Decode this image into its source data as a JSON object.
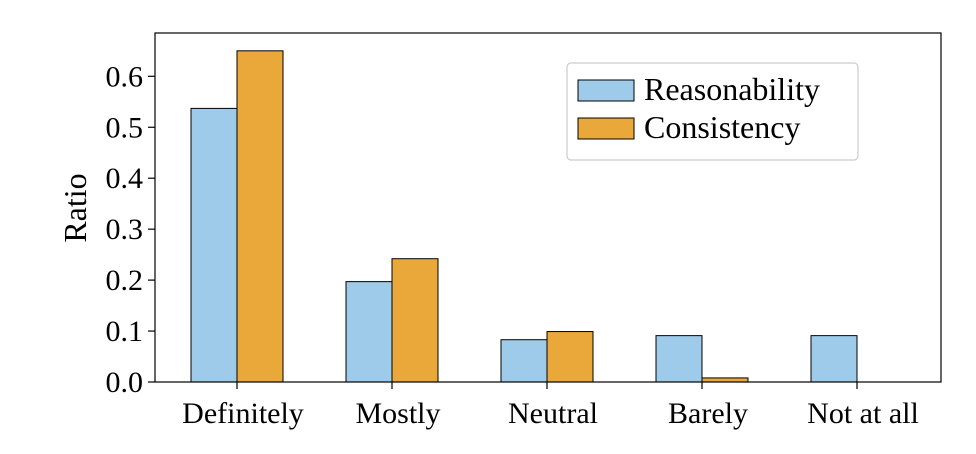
{
  "chart_data": {
    "type": "bar",
    "categories": [
      "Definitely",
      "Mostly",
      "Neutral",
      "Barely",
      "Not at all"
    ],
    "series": [
      {
        "name": "Reasonability",
        "values": [
          0.537,
          0.197,
          0.083,
          0.091,
          0.091
        ],
        "color": "#9fcbea"
      },
      {
        "name": "Consistency",
        "values": [
          0.65,
          0.242,
          0.099,
          0.008,
          0.0
        ],
        "color": "#eba83a"
      }
    ],
    "ylabel": "Ratio",
    "ylim": [
      0,
      0.685
    ],
    "yticks": [
      "0.0",
      "0.1",
      "0.2",
      "0.3",
      "0.4",
      "0.5",
      "0.6"
    ],
    "ytick_values": [
      0.0,
      0.1,
      0.2,
      0.3,
      0.4,
      0.5,
      0.6
    ],
    "grid": false,
    "legend_position": "top-right"
  }
}
